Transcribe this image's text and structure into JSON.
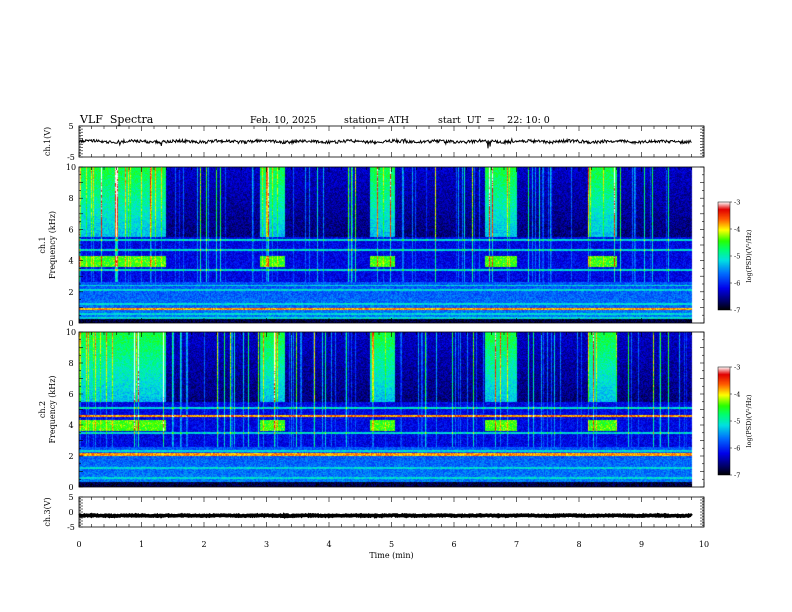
{
  "header": {
    "title": "VLF  Spectra",
    "date": "Feb. 10, 2025",
    "station": "station= ATH",
    "start_ut": "start  UT  =    22: 10: 0"
  },
  "chart_data": [
    {
      "type": "line",
      "panel": "ch1-waveform",
      "ylabel": "ch.1(V)",
      "ylim": [
        -5,
        5
      ],
      "yticks": [
        "5",
        "-5"
      ],
      "xlim": [
        0,
        10
      ],
      "series": [
        {
          "baseline": 0.0,
          "noise_amplitude": 0.5,
          "color": "#000000"
        }
      ]
    },
    {
      "type": "heatmap",
      "panel": "ch1-spectrogram",
      "ylabel": "ch.1\nFrequency  (kHz)",
      "ylim": [
        0,
        10
      ],
      "yticks": [
        "0",
        "2",
        "4",
        "6",
        "8",
        "10"
      ],
      "xlim": [
        0,
        10
      ],
      "data_extent_min": 9.8,
      "colorbar": {
        "label": "log(PSD)(V²/Hz)",
        "range": [
          -7,
          -3
        ],
        "ticks": [
          "-3",
          "-4",
          "-5",
          "-6",
          "-7"
        ]
      },
      "tone_bursts": [
        [
          0,
          1.4
        ],
        [
          2.9,
          3.3
        ],
        [
          4.65,
          5.05
        ],
        [
          6.5,
          7.0
        ],
        [
          8.15,
          8.6
        ]
      ],
      "burst_band_khz": [
        3.6,
        4.3
      ],
      "high_band_active": [
        [
          0,
          1.4
        ],
        [
          2.9,
          3.3
        ],
        [
          4.65,
          5.05
        ],
        [
          6.5,
          7.0
        ],
        [
          8.15,
          8.6
        ]
      ],
      "lines_khz": [
        0.3,
        0.6,
        0.9,
        1.2,
        2.1,
        2.4,
        3.4,
        4.7,
        5.3
      ],
      "hot_lines_khz": [
        0.9
      ]
    },
    {
      "type": "heatmap",
      "panel": "ch2-spectrogram",
      "ylabel": "ch.2\nFrequency  (kHz)",
      "ylim": [
        0,
        10
      ],
      "yticks": [
        "0",
        "2",
        "4",
        "6",
        "8",
        "10"
      ],
      "xlim": [
        0,
        10
      ],
      "data_extent_min": 9.8,
      "colorbar": {
        "label": "log(PSD)(V²/Hz)",
        "range": [
          -7,
          -3
        ],
        "ticks": [
          "-3",
          "-4",
          "-5",
          "-6",
          "-7"
        ]
      },
      "tone_bursts": [
        [
          0,
          1.4
        ],
        [
          2.9,
          3.3
        ],
        [
          4.65,
          5.05
        ],
        [
          6.5,
          7.0
        ],
        [
          8.15,
          8.6
        ]
      ],
      "burst_band_khz": [
        3.6,
        4.3
      ],
      "high_band_active": [
        [
          0,
          1.4
        ],
        [
          2.9,
          3.3
        ],
        [
          4.65,
          5.05
        ],
        [
          6.5,
          7.0
        ],
        [
          8.15,
          8.6
        ]
      ],
      "lines_khz": [
        0.6,
        1.2,
        2.1,
        2.3,
        3.5,
        4.6,
        5.1
      ],
      "hot_lines_khz": [
        2.1,
        4.6
      ]
    },
    {
      "type": "line",
      "panel": "ch3-waveform",
      "ylabel": "ch.3(V)",
      "ylim": [
        -5,
        5
      ],
      "yticks": [
        "5",
        "0",
        "-5"
      ],
      "xlim": [
        0,
        10
      ],
      "series": [
        {
          "baseline": -1.2,
          "noise_amplitude": 0.15,
          "color": "#000000"
        }
      ]
    }
  ],
  "x_axis": {
    "label": "Time  (min)",
    "ticks": [
      "0",
      "1",
      "2",
      "3",
      "4",
      "5",
      "6",
      "7",
      "8",
      "9",
      "10"
    ]
  }
}
